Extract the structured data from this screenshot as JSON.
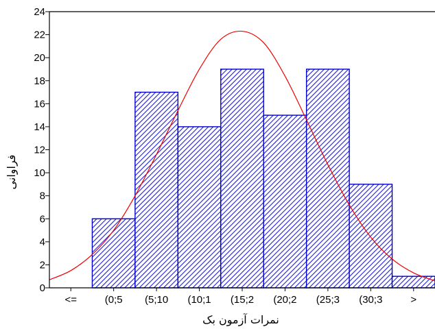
{
  "chart_data": {
    "type": "bar",
    "title": "",
    "xlabel": "نمرات آزمون بک",
    "ylabel": "فراوانی",
    "categories": [
      "<=",
      "(0;5",
      "(5;10",
      "(10;1",
      "(15;2",
      "(20;2",
      "(25;3",
      "(30;3",
      ">"
    ],
    "values": [
      0,
      6,
      17,
      14,
      19,
      15,
      19,
      9,
      1
    ],
    "ylim": [
      0,
      24
    ],
    "yticks": [
      0,
      2,
      4,
      6,
      8,
      10,
      12,
      14,
      16,
      18,
      20,
      22,
      24
    ],
    "xrange": [
      -5,
      40
    ],
    "bin_edges": [
      -5,
      0,
      5,
      10,
      15,
      20,
      25,
      30,
      35,
      40
    ],
    "normal_curve": {
      "x": [
        -5,
        -2.5,
        0,
        2.5,
        5,
        7.5,
        10,
        12.5,
        15,
        17.5,
        20,
        22.5,
        25,
        27.5,
        30,
        32.5,
        35,
        37.5,
        40
      ],
      "y": [
        0.7,
        1.5,
        2.9,
        5.0,
        8.0,
        11.6,
        15.4,
        19.0,
        21.6,
        22.3,
        21.3,
        18.4,
        14.6,
        10.7,
        7.2,
        4.4,
        2.5,
        1.3,
        0.6
      ]
    },
    "bar_fill_color": "#1f1fd8",
    "bar_edge_color": "#0000cc",
    "curve_color": "#ee0000",
    "grid": false,
    "legend": "none"
  }
}
